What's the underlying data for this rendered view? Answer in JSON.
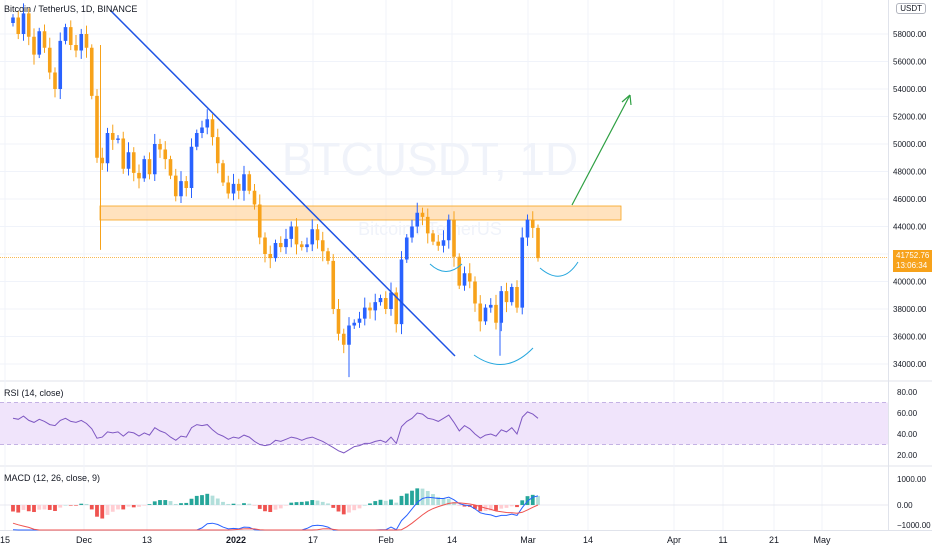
{
  "title": {
    "symbol": "Bitcoin / TetherUS, 1D, BINANCE",
    "currency": "USDT"
  },
  "watermark": {
    "symbol": "BTCUSDT, 1D",
    "name": "Bitcoin / TetherUS"
  },
  "last_price": {
    "value": "41752.76",
    "countdown": "13:06:34"
  },
  "rsi": {
    "title": "RSI (14, close)"
  },
  "macd": {
    "title": "MACD (12, 26, close, 9)"
  },
  "colors": {
    "up": "#2962ff",
    "down": "#f7a21a",
    "trendline": "#1e53e5",
    "resistance": "#ffd8a8",
    "arrow": "#2ea043",
    "pattern": "#26a7de",
    "rsi_line": "#7e57c2",
    "rsi_band": "#f0e4fb",
    "macd_line": "#2962ff",
    "signal_line": "#ef5350",
    "hist_pos": "#26a69a",
    "hist_neg": "#ef5350"
  },
  "chart_data": [
    {
      "type": "candlestick",
      "title": "Bitcoin / TetherUS, 1D, BINANCE",
      "ylim": [
        33000,
        60500
      ],
      "y_ticks": [
        34000,
        36000,
        38000,
        40000,
        42000,
        44000,
        46000,
        48000,
        50000,
        52000,
        54000,
        56000,
        58000
      ],
      "x_tick_labels": [
        "15",
        "Dec",
        "13",
        "2022",
        "17",
        "Feb",
        "14",
        "Mar",
        "14",
        "Apr",
        "11",
        "21",
        "May"
      ],
      "closes": [
        59200,
        58000,
        59500,
        57800,
        56500,
        58200,
        57000,
        55200,
        54000,
        57500,
        58500,
        57200,
        56800,
        58000,
        57000,
        53500,
        49000,
        48600,
        50800,
        50300,
        50400,
        48200,
        49400,
        47900,
        47500,
        48900,
        47800,
        50000,
        49600,
        48900,
        47700,
        46200,
        47300,
        46800,
        49800,
        50800,
        51200,
        51800,
        50500,
        48600,
        47200,
        46400,
        47100,
        46600,
        47800,
        46600,
        45600,
        43200,
        42000,
        41700,
        42800,
        42500,
        43100,
        44000,
        42700,
        42500,
        42700,
        43800,
        43000,
        42200,
        41500,
        38000,
        36200,
        35400,
        36800,
        37000,
        37300,
        38100,
        37900,
        38500,
        38800,
        38000,
        39200,
        36900,
        41600,
        43200,
        44000,
        45000,
        44700,
        43500,
        42900,
        42600,
        43000,
        44500,
        41800,
        39700,
        40600,
        40000,
        38400,
        37100,
        38100,
        38300,
        37000,
        39300,
        38500,
        39600,
        38100,
        43200,
        44500,
        43900,
        41700
      ],
      "rsi": [
        55,
        54,
        57,
        53,
        51,
        54,
        52,
        49,
        48,
        53,
        55,
        52,
        51,
        53,
        50,
        45,
        36,
        37,
        42,
        41,
        42,
        38,
        42,
        41,
        38,
        41,
        39,
        46,
        43,
        41,
        37,
        34,
        38,
        37,
        46,
        49,
        48,
        49,
        44,
        40,
        38,
        35,
        37,
        36,
        39,
        37,
        33,
        30,
        29,
        30,
        34,
        33,
        35,
        37,
        36,
        34,
        36,
        37,
        35,
        33,
        30,
        27,
        24,
        22,
        25,
        28,
        29,
        31,
        31,
        33,
        34,
        32,
        37,
        31,
        47,
        52,
        55,
        60,
        59,
        55,
        54,
        52,
        55,
        58,
        51,
        43,
        48,
        45,
        40,
        36,
        39,
        40,
        38,
        44,
        42,
        46,
        40,
        56,
        61,
        59,
        55
      ],
      "macd": [
        -950,
        -1050,
        -1000,
        -1100,
        -1200,
        -1150,
        -1180,
        -1250,
        -1350,
        -1250,
        -1150,
        -1160,
        -1180,
        -1100,
        -1100,
        -1350,
        -1750,
        -1950,
        -1900,
        -1850,
        -1800,
        -1850,
        -1750,
        -1800,
        -1800,
        -1750,
        -1700,
        -1550,
        -1450,
        -1400,
        -1400,
        -1500,
        -1450,
        -1420,
        -1200,
        -1000,
        -880,
        -720,
        -700,
        -750,
        -850,
        -920,
        -900,
        -920,
        -850,
        -860,
        -950,
        -1100,
        -1250,
        -1350,
        -1300,
        -1280,
        -1180,
        -1050,
        -1000,
        -960,
        -900,
        -800,
        -780,
        -800,
        -850,
        -1050,
        -1250,
        -1450,
        -1450,
        -1420,
        -1380,
        -1250,
        -1180,
        -1050,
        -950,
        -950,
        -850,
        -950,
        -600,
        -400,
        -150,
        100,
        250,
        300,
        280,
        250,
        250,
        300,
        200,
        50,
        0,
        -30,
        -150,
        -300,
        -350,
        -380,
        -450,
        -400,
        -400,
        -350,
        -400,
        -100,
        150,
        300,
        350
      ],
      "signal": [
        -700,
        -760,
        -810,
        -860,
        -930,
        -970,
        -1010,
        -1060,
        -1120,
        -1150,
        -1150,
        -1150,
        -1160,
        -1150,
        -1140,
        -1180,
        -1300,
        -1430,
        -1520,
        -1590,
        -1630,
        -1680,
        -1690,
        -1710,
        -1730,
        -1730,
        -1730,
        -1690,
        -1640,
        -1590,
        -1550,
        -1540,
        -1520,
        -1500,
        -1440,
        -1350,
        -1260,
        -1150,
        -1060,
        -1000,
        -970,
        -960,
        -950,
        -940,
        -920,
        -910,
        -920,
        -950,
        -1010,
        -1080,
        -1120,
        -1150,
        -1160,
        -1140,
        -1110,
        -1080,
        -1040,
        -990,
        -950,
        -920,
        -910,
        -940,
        -1000,
        -1090,
        -1160,
        -1220,
        -1250,
        -1250,
        -1240,
        -1200,
        -1150,
        -1110,
        -1060,
        -1040,
        -950,
        -840,
        -700,
        -540,
        -380,
        -240,
        -140,
        -60,
        0,
        60,
        90,
        80,
        60,
        40,
        0,
        -60,
        -120,
        -170,
        -230,
        -260,
        -290,
        -300,
        -320,
        -280,
        -190,
        -90,
        0
      ]
    }
  ],
  "price_axis_labels": [
    "34000.00",
    "36000.00",
    "38000.00",
    "40000.00",
    "42000.00",
    "44000.00",
    "46000.00",
    "48000.00",
    "50000.00",
    "52000.00",
    "54000.00",
    "56000.00",
    "58000.00"
  ],
  "rsi_axis_labels": [
    "80.00",
    "60.00",
    "40.00",
    "20.00"
  ],
  "macd_axis_labels": [
    "1000.00",
    "0.00",
    "−1000.00"
  ]
}
